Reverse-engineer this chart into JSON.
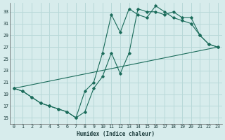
{
  "xlabel": "Humidex (Indice chaleur)",
  "bg_color": "#d7ecec",
  "grid_color": "#b8d8d8",
  "line_color": "#1a6b5a",
  "xlim": [
    -0.5,
    23.5
  ],
  "ylim": [
    14.0,
    34.5
  ],
  "yticks": [
    15,
    17,
    19,
    21,
    23,
    25,
    27,
    29,
    31,
    33
  ],
  "xticks": [
    0,
    1,
    2,
    3,
    4,
    5,
    6,
    7,
    8,
    9,
    10,
    11,
    12,
    13,
    14,
    15,
    16,
    17,
    18,
    19,
    20,
    21,
    22,
    23
  ],
  "line1_x": [
    0,
    1,
    2,
    3,
    4,
    5,
    6,
    7,
    8,
    9,
    10,
    11,
    12,
    13,
    14,
    15,
    16,
    17,
    18,
    19,
    20,
    21,
    22,
    23
  ],
  "line1_y": [
    20.0,
    19.5,
    18.5,
    17.5,
    17.0,
    16.5,
    16.0,
    15.0,
    19.5,
    21.0,
    26.0,
    32.5,
    29.5,
    33.5,
    32.5,
    32.0,
    34.0,
    33.0,
    32.0,
    31.5,
    31.0,
    29.0,
    27.5,
    27.0
  ],
  "line2_x": [
    0,
    1,
    2,
    3,
    4,
    5,
    6,
    7,
    8,
    9,
    10,
    11,
    12,
    13,
    14,
    15,
    16,
    17,
    18,
    19,
    20,
    21,
    22,
    23
  ],
  "line2_y": [
    20.0,
    19.5,
    18.5,
    17.5,
    17.0,
    16.5,
    16.0,
    15.0,
    16.0,
    20.0,
    22.0,
    26.0,
    22.5,
    26.0,
    33.5,
    33.0,
    33.0,
    32.5,
    33.0,
    32.0,
    32.0,
    29.0,
    27.5,
    27.0
  ],
  "line3_x": [
    0,
    23
  ],
  "line3_y": [
    20.0,
    27.0
  ]
}
